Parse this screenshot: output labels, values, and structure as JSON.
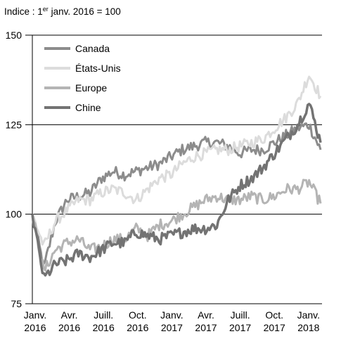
{
  "chart_data": {
    "type": "line",
    "ylabel_parts": {
      "prefix": "Indice : 1",
      "sup": "er",
      "suffix": " janv. 2016 = 100"
    },
    "ylim": [
      75,
      150
    ],
    "y_ticks": [
      "150",
      "125",
      "100",
      "75"
    ],
    "grid": "horizontal",
    "legend_position": "top-left",
    "x_ticks": [
      {
        "line1": "Janv.",
        "line2": "2016"
      },
      {
        "line1": "Avr.",
        "line2": "2016"
      },
      {
        "line1": "Juill.",
        "line2": "2016"
      },
      {
        "line1": "Oct.",
        "line2": "2016"
      },
      {
        "line1": "Janv.",
        "line2": "2017"
      },
      {
        "line1": "Avr.",
        "line2": "2017"
      },
      {
        "line1": "Juill.",
        "line2": "2017"
      },
      {
        "line1": "Oct.",
        "line2": "2017"
      },
      {
        "line1": "Janv.",
        "line2": "2018"
      }
    ],
    "x_points": [
      "Janv. 2016",
      "Févr. 2016",
      "Mars 2016",
      "Avr. 2016",
      "Mai 2016",
      "Juin 2016",
      "Juill. 2016",
      "Août 2016",
      "Sept. 2016",
      "Oct. 2016",
      "Nov. 2016",
      "Déc. 2016",
      "Janv. 2017",
      "Févr. 2017",
      "Mars 2017",
      "Avr. 2017",
      "Mai 2017",
      "Juin 2017",
      "Juill. 2017",
      "Août 2017",
      "Sept. 2017",
      "Oct. 2017",
      "Nov. 2017",
      "Déc. 2017",
      "Janv. 2018",
      "Févr. 2018"
    ],
    "series": [
      {
        "name": "Canada",
        "color": "#8c8c8c",
        "width": 3,
        "values": [
          100,
          85,
          98,
          104,
          105,
          106,
          110,
          112,
          111,
          112,
          113,
          114,
          116,
          118,
          119,
          120,
          120,
          119,
          117,
          118,
          118,
          120,
          122,
          124,
          125,
          118
        ]
      },
      {
        "name": "États-Unis",
        "color": "#dcdcdc",
        "width": 3,
        "values": [
          100,
          91,
          98,
          101,
          104,
          104,
          106,
          107,
          106,
          104,
          107,
          110,
          111,
          114,
          116,
          117,
          118,
          118,
          119,
          120,
          121,
          124,
          127,
          131,
          139,
          133
        ]
      },
      {
        "name": "Europe",
        "color": "#b4b4b4",
        "width": 3,
        "values": [
          100,
          84,
          90,
          92,
          93,
          90,
          91,
          93,
          93,
          96,
          94,
          97,
          98,
          100,
          102,
          104,
          105,
          104,
          104,
          105,
          104,
          105,
          107,
          107,
          109,
          103
        ]
      },
      {
        "name": "Chine",
        "color": "#737373",
        "width": 3.5,
        "values": [
          100,
          82,
          86,
          87,
          89,
          88,
          90,
          92,
          92,
          95,
          94,
          93,
          94,
          95,
          96,
          96,
          97,
          104,
          108,
          110,
          113,
          117,
          121,
          125,
          131,
          120
        ]
      }
    ]
  }
}
